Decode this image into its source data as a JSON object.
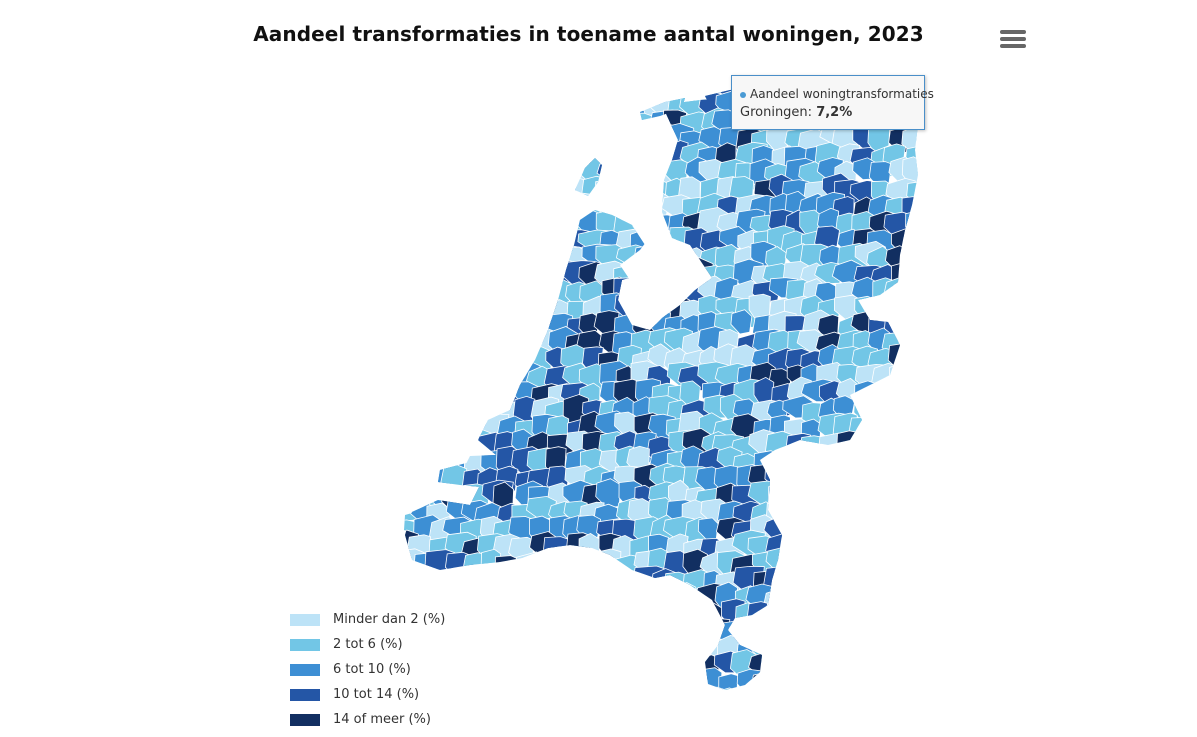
{
  "title": "Aandeel transformaties in toename aantal woningen, 2023",
  "menu": {
    "icon": "hamburger-menu-icon"
  },
  "tooltip": {
    "series_name": "Aandeel woningtransformaties",
    "region": "Groningen",
    "value": "7,2%"
  },
  "legend": {
    "items": [
      {
        "label": "Minder dan 2 (%)",
        "color": "#bde3f7"
      },
      {
        "label": "2 tot 6 (%)",
        "color": "#72c6e6"
      },
      {
        "label": "6 tot 10 (%)",
        "color": "#3d8fd4"
      },
      {
        "label": "10 tot 14 (%)",
        "color": "#2456a6"
      },
      {
        "label": "14 of meer (%)",
        "color": "#122f61"
      }
    ]
  },
  "map": {
    "background": "#ffffff",
    "border_color": "#ffffff"
  }
}
